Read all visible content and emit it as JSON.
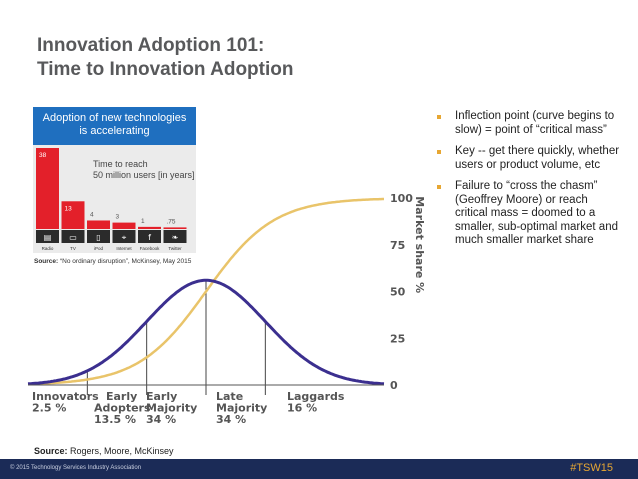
{
  "slide": {
    "title_line1": "Innovation Adoption 101:",
    "title_line2": "Time to Innovation Adoption",
    "bullets": [
      "Inflection point (curve begins to slow) = point of “critical mass”",
      "Key -- get there quickly, whether users or product volume, etc",
      "Failure to “cross the chasm” (Geoffrey Moore) or reach critical mass =  doomed to a smaller, sub-optimal market and much smaller market share"
    ],
    "source_label": "Source:",
    "source_text": " Rogers, Moore, McKinsey",
    "footer_copyright": "© 2015 Technology Services Industry Association",
    "footer_tag": "#TSW15",
    "colors": {
      "footer_bg": "#1b2b57",
      "accent": "#e7a733",
      "inset_blue": "#1f6fbf"
    }
  },
  "inset": {
    "header_line1": "Adoption of new technologies",
    "header_line2": "is accelerating",
    "subtitle_line1": "Time to reach",
    "subtitle_line2": "50 million users [in years]",
    "caption_label": "Source:",
    "caption_text": " “No ordinary disruption”, McKinsey, May 2015"
  },
  "chart_data": [
    {
      "type": "bar",
      "title": "Time to reach 50 million users [in years]",
      "categories": [
        "Radio",
        "TV",
        "iPod",
        "Internet",
        "Facebook",
        "Twitter"
      ],
      "values": [
        38,
        13,
        4,
        3,
        1,
        0.75
      ],
      "value_labels": [
        "38",
        "13",
        "4",
        "3",
        "1",
        ".75"
      ],
      "icons": [
        "radio-icon",
        "tv-icon",
        "ipod-icon",
        "internet-icon",
        "facebook-icon",
        "twitter-icon"
      ],
      "ylim": [
        0,
        38
      ],
      "bar_color": "#e3202a"
    },
    {
      "type": "line",
      "series": [
        {
          "name": "",
          "kind": "bell",
          "mean": 0,
          "sd": 1,
          "color": "#3b2f8f"
        },
        {
          "name": "",
          "kind": "s-curve",
          "color": "#e9c46a"
        }
      ],
      "ylabel": "Market share %",
      "y_ticks": [
        0,
        25,
        50,
        75,
        100
      ],
      "ylim": [
        0,
        100
      ],
      "xlim": [
        -3,
        3
      ],
      "dividers_sd": [
        -2,
        -1,
        0,
        1
      ],
      "segments": [
        {
          "name": "Innovators",
          "share": "2.5 %"
        },
        {
          "name": "Early Adopters",
          "share": "13.5 %"
        },
        {
          "name": "Early Majority",
          "share": "34 %"
        },
        {
          "name": "Late Majority",
          "share": "34 %"
        },
        {
          "name": "Laggards",
          "share": "16 %"
        }
      ]
    }
  ]
}
